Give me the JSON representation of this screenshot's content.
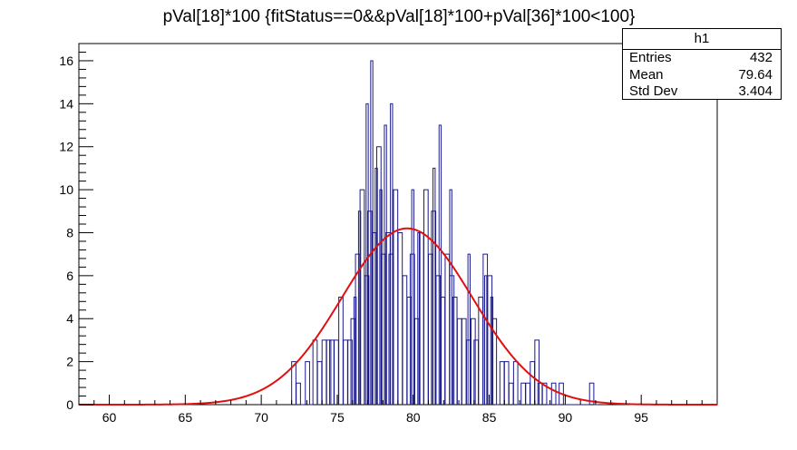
{
  "chart_data": {
    "type": "histogram",
    "title": "pVal[18]*100 {fitStatus==0&&pVal[18]*100+pVal[36]*100<100}",
    "xlabel": "",
    "ylabel": "",
    "xlim": [
      58,
      100
    ],
    "ylim": [
      0,
      16.8
    ],
    "bin_width": 0.28,
    "x_ticks": [
      60,
      65,
      70,
      75,
      80,
      85,
      90,
      95
    ],
    "y_ticks": [
      0,
      2,
      4,
      6,
      8,
      10,
      12,
      14,
      16
    ],
    "bins": [
      [
        72.0,
        2
      ],
      [
        72.3,
        1
      ],
      [
        72.6,
        0
      ],
      [
        72.9,
        2
      ],
      [
        73.1,
        0
      ],
      [
        73.4,
        3
      ],
      [
        73.7,
        2
      ],
      [
        74.0,
        3
      ],
      [
        74.3,
        3
      ],
      [
        74.5,
        3
      ],
      [
        74.8,
        3
      ],
      [
        75.1,
        5
      ],
      [
        75.4,
        3
      ],
      [
        75.7,
        3
      ],
      [
        75.9,
        4
      ],
      [
        76.2,
        7
      ],
      [
        76.5,
        10
      ],
      [
        76.8,
        6
      ],
      [
        77.0,
        9
      ],
      [
        77.3,
        8
      ],
      [
        77.6,
        12
      ],
      [
        77.9,
        7
      ],
      [
        78.2,
        8
      ],
      [
        78.4,
        7
      ],
      [
        78.7,
        10
      ],
      [
        79.0,
        8
      ],
      [
        79.3,
        6
      ],
      [
        79.6,
        5
      ],
      [
        79.8,
        7
      ],
      [
        80.1,
        4
      ],
      [
        80.4,
        8
      ],
      [
        80.7,
        10
      ],
      [
        81.0,
        7
      ],
      [
        81.2,
        9
      ],
      [
        81.5,
        6
      ],
      [
        81.8,
        5
      ],
      [
        82.1,
        7
      ],
      [
        82.4,
        6
      ],
      [
        82.6,
        5
      ],
      [
        82.9,
        4
      ],
      [
        83.2,
        4
      ],
      [
        83.5,
        3
      ],
      [
        83.8,
        4
      ],
      [
        84.0,
        3
      ],
      [
        84.3,
        5
      ],
      [
        84.6,
        7
      ],
      [
        84.9,
        6
      ],
      [
        85.2,
        4
      ],
      [
        85.4,
        0
      ],
      [
        85.7,
        2
      ],
      [
        86.0,
        2
      ],
      [
        86.3,
        1
      ],
      [
        86.6,
        2
      ],
      [
        86.8,
        0
      ],
      [
        87.1,
        1
      ],
      [
        87.4,
        1
      ],
      [
        87.7,
        2
      ],
      [
        88.0,
        3
      ],
      [
        88.2,
        1
      ],
      [
        88.5,
        1
      ],
      [
        88.8,
        0
      ],
      [
        89.1,
        1
      ],
      [
        89.4,
        0
      ],
      [
        89.6,
        1
      ],
      [
        89.9,
        0
      ],
      [
        90.2,
        0
      ],
      [
        90.5,
        0
      ],
      [
        90.8,
        0
      ],
      [
        91.0,
        0
      ],
      [
        91.3,
        0
      ],
      [
        91.6,
        1
      ],
      [
        91.9,
        0
      ]
    ],
    "spikes": [
      [
        76.1,
        5
      ],
      [
        76.4,
        9
      ],
      [
        76.9,
        14
      ],
      [
        77.2,
        16
      ],
      [
        77.5,
        11
      ],
      [
        77.8,
        10
      ],
      [
        78.1,
        13
      ],
      [
        78.5,
        14
      ],
      [
        79.9,
        10
      ],
      [
        80.3,
        8
      ],
      [
        81.3,
        11
      ],
      [
        81.7,
        13
      ],
      [
        82.4,
        10
      ],
      [
        83.6,
        7
      ],
      [
        84.7,
        6
      ],
      [
        85.1,
        5
      ]
    ],
    "fit": {
      "type": "gaussian",
      "constant": 8.2,
      "mean": 79.6,
      "sigma": 4.3,
      "x_range": [
        58,
        100
      ]
    },
    "legend_position": "top-right",
    "grid": false,
    "colors": {
      "histogram": "#1a1a8c",
      "fit": "#e01010",
      "axes": "#000000"
    }
  },
  "stats_box": {
    "name": "h1",
    "rows": [
      {
        "key": "Entries",
        "value": "432"
      },
      {
        "key": "Mean",
        "value": "79.64"
      },
      {
        "key": "Std Dev",
        "value": "3.404"
      }
    ]
  }
}
